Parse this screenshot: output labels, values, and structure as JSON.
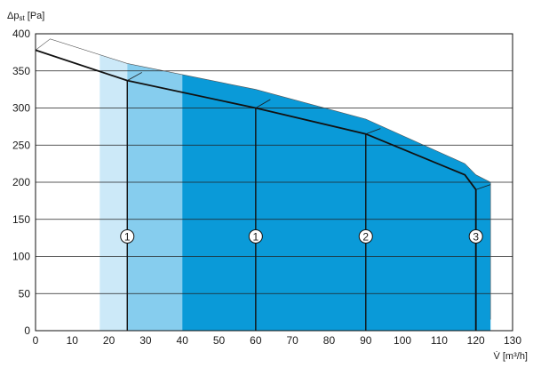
{
  "chart_data": {
    "type": "area",
    "ylabel": "Δp",
    "ylabel_sub": "st",
    "ylabel_unit": " [Pa]",
    "xlabel": "V̇ [m³/h]",
    "xlim": [
      0,
      130
    ],
    "ylim": [
      0,
      400
    ],
    "x_ticks": [
      0,
      10,
      20,
      30,
      40,
      50,
      60,
      70,
      80,
      90,
      100,
      110,
      120,
      130
    ],
    "y_ticks": [
      0,
      50,
      100,
      150,
      200,
      250,
      300,
      350,
      400
    ],
    "grid": "horizontal",
    "colors": {
      "band_light": "#cce9f8",
      "band_medium": "#86cdee",
      "band_dark": "#0a9ad8",
      "curve": "#111111",
      "grid": "#222222"
    },
    "characteristic_curve": {
      "x": [
        0,
        25,
        60,
        90,
        117,
        120,
        120
      ],
      "y": [
        378,
        337,
        300,
        265,
        210,
        190,
        0
      ]
    },
    "upper_envelope": {
      "x": [
        0,
        4,
        25,
        60,
        90,
        117,
        120,
        124,
        124
      ],
      "y": [
        378,
        393,
        360,
        325,
        285,
        225,
        210,
        200,
        15
      ]
    },
    "bands": [
      {
        "x_from": 17.5,
        "x_to": 25,
        "color": "#cce9f8"
      },
      {
        "x_from": 25,
        "x_to": 40,
        "color": "#86cdee"
      },
      {
        "x_from": 40,
        "x_to": 124,
        "color": "#0a9ad8"
      }
    ],
    "operating_points": [
      {
        "label": "1",
        "x": 25,
        "y": 337,
        "marker_y": 127,
        "shadow": true
      },
      {
        "label": "1",
        "x": 60,
        "y": 300,
        "marker_y": 127,
        "shadow": false
      },
      {
        "label": "2",
        "x": 90,
        "y": 265,
        "marker_y": 127,
        "shadow": false
      },
      {
        "label": "3",
        "x": 120,
        "y": 190,
        "marker_y": 127,
        "shadow": false
      }
    ]
  }
}
